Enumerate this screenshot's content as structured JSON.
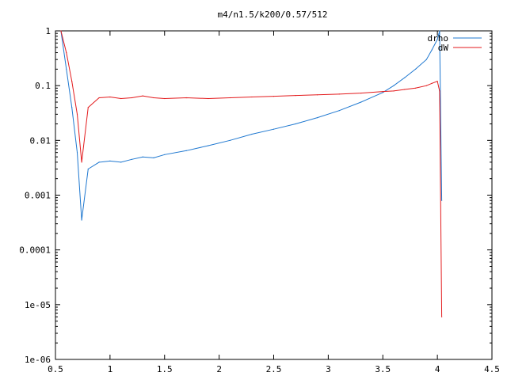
{
  "chart_data": {
    "type": "line",
    "title": "m4/n1.5/k200/0.57/512",
    "xlabel": "",
    "ylabel": "",
    "xlim": [
      0.5,
      4.5
    ],
    "ylim": [
      1e-06,
      1
    ],
    "yscale": "log",
    "grid": false,
    "legend_position": "top-right",
    "x_ticks": [
      0.5,
      1,
      1.5,
      2,
      2.5,
      3,
      3.5,
      4,
      4.5
    ],
    "x_tick_labels": [
      "0.5",
      "1",
      "1.5",
      "2",
      "2.5",
      "3",
      "3.5",
      "4",
      "4.5"
    ],
    "y_ticks": [
      1,
      0.1,
      0.01,
      0.001,
      0.0001,
      1e-05,
      1e-06
    ],
    "y_tick_labels": [
      "1",
      "0.1",
      "0.01",
      "0.001",
      "0.0001",
      "1e-05",
      "1e-06"
    ],
    "series": [
      {
        "name": "drho",
        "color": "#1f78d0",
        "x": [
          0.55,
          0.6,
          0.65,
          0.7,
          0.74,
          0.8,
          0.9,
          1.0,
          1.1,
          1.2,
          1.3,
          1.4,
          1.5,
          1.7,
          1.9,
          2.1,
          2.3,
          2.5,
          2.7,
          2.9,
          3.1,
          3.3,
          3.5,
          3.6,
          3.7,
          3.8,
          3.9,
          3.95,
          4.0,
          4.02,
          4.04
        ],
        "y": [
          1.0,
          0.2,
          0.04,
          0.006,
          0.00035,
          0.003,
          0.004,
          0.0042,
          0.004,
          0.0045,
          0.005,
          0.0048,
          0.0055,
          0.0065,
          0.008,
          0.01,
          0.013,
          0.016,
          0.02,
          0.026,
          0.035,
          0.05,
          0.075,
          0.1,
          0.14,
          0.2,
          0.3,
          0.45,
          0.7,
          1.0,
          0.0008
        ]
      },
      {
        "name": "dW",
        "color": "#e31a1c",
        "x": [
          0.55,
          0.6,
          0.65,
          0.7,
          0.74,
          0.8,
          0.9,
          1.0,
          1.1,
          1.2,
          1.3,
          1.4,
          1.5,
          1.7,
          1.9,
          2.1,
          2.3,
          2.5,
          2.7,
          2.9,
          3.1,
          3.3,
          3.5,
          3.6,
          3.7,
          3.8,
          3.9,
          3.95,
          4.0,
          4.02,
          4.04
        ],
        "y": [
          1.0,
          0.4,
          0.12,
          0.03,
          0.004,
          0.04,
          0.06,
          0.062,
          0.058,
          0.06,
          0.065,
          0.06,
          0.058,
          0.06,
          0.058,
          0.06,
          0.062,
          0.064,
          0.066,
          0.068,
          0.07,
          0.073,
          0.078,
          0.08,
          0.085,
          0.09,
          0.1,
          0.11,
          0.12,
          0.08,
          6e-06
        ]
      }
    ]
  }
}
